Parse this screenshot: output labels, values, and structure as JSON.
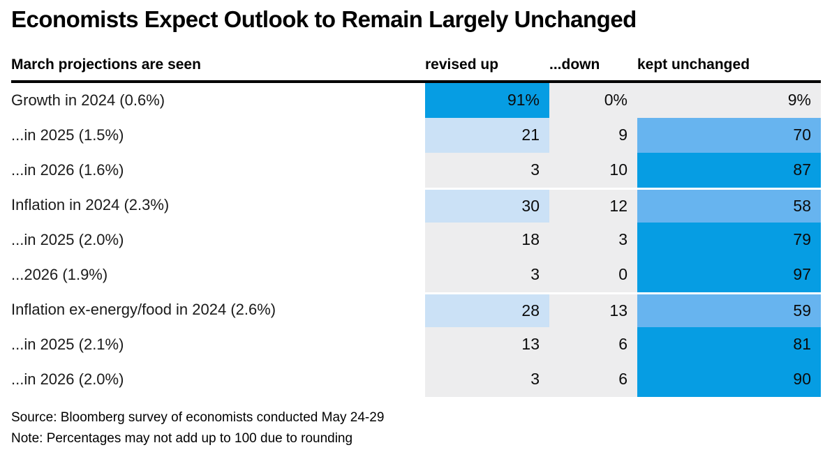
{
  "title": "Economists Expect Outlook to Remain Largely Unchanged",
  "table": {
    "headers": {
      "label": "March projections are seen",
      "up": "revised up",
      "down": "...down",
      "unchanged": "kept unchanged"
    },
    "rows": [
      {
        "label": "Growth in 2024 (0.6%)",
        "up": "91%",
        "down": "0%",
        "unchanged": "9%",
        "group_start": false
      },
      {
        "label": "...in 2025 (1.5%)",
        "up": "21",
        "down": "9",
        "unchanged": "70",
        "group_start": false
      },
      {
        "label": "...in 2026 (1.6%)",
        "up": "3",
        "down": "10",
        "unchanged": "87",
        "group_start": false
      },
      {
        "label": "Inflation in 2024 (2.3%)",
        "up": "30",
        "down": "12",
        "unchanged": "58",
        "group_start": true
      },
      {
        "label": "...in 2025 (2.0%)",
        "up": "18",
        "down": "3",
        "unchanged": "79",
        "group_start": false
      },
      {
        "label": "...2026 (1.9%)",
        "up": "3",
        "down": "0",
        "unchanged": "97",
        "group_start": false
      },
      {
        "label": "Inflation ex-energy/food in 2024 (2.6%)",
        "up": "28",
        "down": "13",
        "unchanged": "59",
        "group_start": true
      },
      {
        "label": "...in 2025 (2.1%)",
        "up": "13",
        "down": "6",
        "unchanged": "81",
        "group_start": false
      },
      {
        "label": "...in 2026 (2.0%)",
        "up": "3",
        "down": "6",
        "unchanged": "90",
        "group_start": false
      }
    ]
  },
  "footer": {
    "source": "Source: Bloomberg survey of economists conducted May 24-29",
    "note": "Note: Percentages may not add up to 100 due to rounding"
  },
  "palette": {
    "strong": "#069de3",
    "mid": "#67b4ef",
    "light": "#cbe1f6",
    "gray": "#ededee"
  },
  "heat_thresholds": {
    "strong_min": 75,
    "mid_min": 50,
    "light_min": 20
  },
  "chart_data": {
    "type": "heatmap",
    "title": "Economists Expect Outlook to Remain Largely Unchanged",
    "columns": [
      "revised up",
      "...down",
      "kept unchanged"
    ],
    "row_labels": [
      "Growth in 2024 (0.6%)",
      "...in 2025 (1.5%)",
      "...in 2026 (1.6%)",
      "Inflation in 2024 (2.3%)",
      "...in 2025 (2.0%)",
      "...2026 (1.9%)",
      "Inflation ex-energy/food in 2024 (2.6%)",
      "...in 2025 (2.1%)",
      "...in 2026 (2.0%)"
    ],
    "values": [
      [
        91,
        0,
        9
      ],
      [
        21,
        9,
        70
      ],
      [
        3,
        10,
        87
      ],
      [
        30,
        12,
        58
      ],
      [
        18,
        3,
        79
      ],
      [
        3,
        0,
        97
      ],
      [
        28,
        13,
        59
      ],
      [
        13,
        6,
        81
      ],
      [
        3,
        6,
        90
      ]
    ],
    "unit": "%",
    "color_buckets": {
      "gray": "0-19",
      "light": "20-49",
      "mid": "50-74",
      "strong": "75-100"
    },
    "source": "Source: Bloomberg survey of economists conducted May 24-29",
    "note": "Note: Percentages may not add up to 100 due to rounding"
  }
}
